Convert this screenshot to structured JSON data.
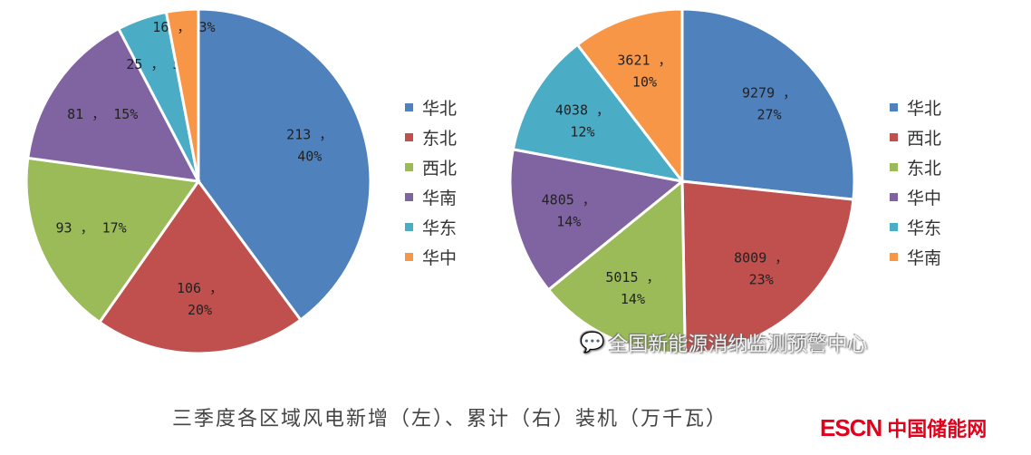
{
  "chart_data": [
    {
      "type": "pie",
      "categories": [
        "华北",
        "东北",
        "西北",
        "华南",
        "华东",
        "华中"
      ],
      "values": [
        213,
        106,
        93,
        81,
        25,
        16
      ],
      "percent_labels": [
        "40%",
        "20%",
        "17%",
        "15%",
        "5%",
        "3%"
      ],
      "colors": [
        "#4F81BD",
        "#C0504D",
        "#9BBB59",
        "#8064A2",
        "#4BACC6",
        "#F79646"
      ],
      "legend_position": "right"
    },
    {
      "type": "pie",
      "categories": [
        "华北",
        "西北",
        "东北",
        "华中",
        "华东",
        "华南"
      ],
      "values": [
        9279,
        8009,
        5015,
        4805,
        4038,
        3621
      ],
      "percent_labels": [
        "27%",
        "23%",
        "14%",
        "14%",
        "12%",
        "10%"
      ],
      "colors": [
        "#4F81BD",
        "#C0504D",
        "#9BBB59",
        "#8064A2",
        "#4BACC6",
        "#F79646"
      ],
      "legend_position": "right"
    }
  ],
  "caption": "三季度各区域风电新增（左）、累计（右）装机（万千瓦）",
  "watermark": "全国新能源消纳监测预警中心",
  "watermark_icon": "wechat-icon",
  "logo": {
    "brand": "ESCN",
    "name": "中国储能网"
  }
}
